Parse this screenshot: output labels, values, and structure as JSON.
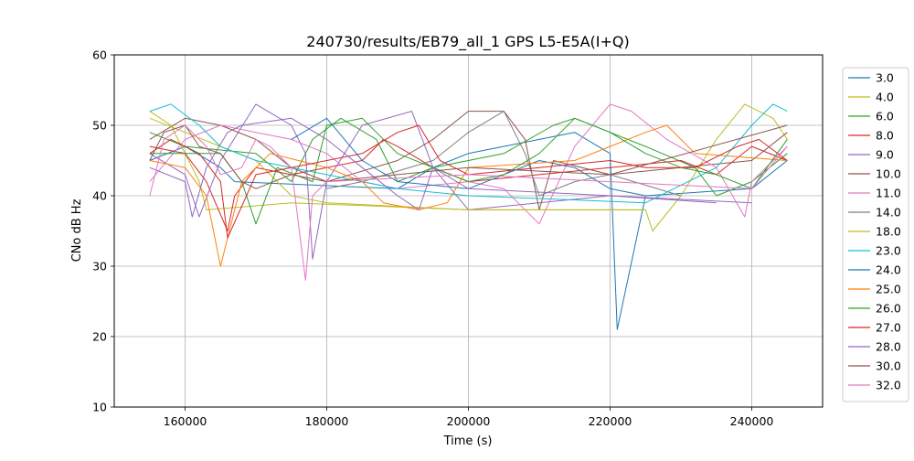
{
  "chart_data": {
    "type": "line",
    "title": "240730/results/EB79_all_1 GPS L5-E5A(I+Q)",
    "xlabel": "Time (s)",
    "ylabel": "CNo dB Hz",
    "xlim": [
      150000,
      250000
    ],
    "ylim": [
      10,
      60
    ],
    "x_ticks": [
      160000,
      180000,
      200000,
      220000,
      240000
    ],
    "y_ticks": [
      10,
      20,
      30,
      40,
      50,
      60
    ],
    "grid": true,
    "legend_position": "right",
    "series": [
      {
        "name": "3.0",
        "color": "#1f77b4",
        "x": [
          155000,
          160000,
          165000,
          167000,
          190000,
          195000,
          200000,
          210000,
          215000,
          220000,
          221000,
          225000,
          240000,
          245000
        ],
        "y": [
          45,
          47,
          44,
          42,
          41,
          44,
          46,
          48,
          49,
          46,
          21,
          40,
          41,
          45
        ]
      },
      {
        "name": "4.0",
        "color": "#bcbd22",
        "x": [
          155000,
          158000,
          162000,
          163000,
          175000,
          200000,
          225000,
          226000,
          230000,
          235000,
          239000,
          243000,
          245000
        ],
        "y": [
          52,
          50,
          42,
          38,
          39,
          38,
          38,
          35,
          40,
          48,
          53,
          51,
          48
        ]
      },
      {
        "name": "6.0",
        "color": "#2ca02c",
        "x": [
          155000,
          160000,
          170000,
          175000,
          178000,
          182000,
          187000,
          190000,
          195000,
          200000,
          205000,
          212000,
          215000,
          220000,
          225000,
          232000,
          235000,
          240000,
          245000
        ],
        "y": [
          49,
          47,
          46,
          42,
          48,
          51,
          48,
          42,
          44,
          45,
          46,
          50,
          51,
          49,
          47,
          44,
          40,
          42,
          46
        ]
      },
      {
        "name": "8.0",
        "color": "#d62728",
        "x": [
          155000,
          160000,
          163000,
          166000,
          167000,
          170000,
          175000,
          180000,
          185000,
          188000,
          190000,
          195000,
          200000,
          210000,
          220000,
          230000,
          235000,
          240000,
          245000
        ],
        "y": [
          47,
          46,
          42,
          35,
          40,
          44,
          43,
          44,
          45,
          48,
          47,
          44,
          42,
          43,
          44,
          45,
          43,
          47,
          45
        ]
      },
      {
        "name": "9.0",
        "color": "#9467bd",
        "x": [
          155000,
          160000,
          162000,
          165000,
          170000,
          175000,
          177000,
          178000,
          180000,
          185000,
          192000,
          195000,
          200000,
          220000,
          240000
        ],
        "y": [
          46,
          43,
          37,
          45,
          53,
          50,
          46,
          31,
          42,
          50,
          52,
          44,
          38,
          40,
          39
        ]
      },
      {
        "name": "10.0",
        "color": "#8c564b",
        "x": [
          155000,
          160000,
          165000,
          170000,
          175000,
          180000,
          190000,
          195000,
          200000,
          205000,
          208000,
          210000,
          212000,
          220000,
          240000,
          245000
        ],
        "y": [
          48,
          51,
          50,
          48,
          44,
          42,
          45,
          48,
          52,
          52,
          48,
          38,
          45,
          43,
          45,
          49
        ]
      },
      {
        "name": "11.0",
        "color": "#e377c2",
        "x": [
          155000,
          160000,
          165000,
          170000,
          175000,
          180000,
          185000,
          190000,
          200000,
          205000,
          210000,
          215000,
          220000,
          223000,
          228000,
          235000,
          239000,
          240000,
          245000
        ],
        "y": [
          42,
          48,
          50,
          49,
          48,
          46,
          42,
          41,
          42,
          41,
          36,
          47,
          53,
          52,
          48,
          44,
          37,
          42,
          47
        ]
      },
      {
        "name": "14.0",
        "color": "#7f7f7f",
        "x": [
          180000,
          185000,
          195000,
          200000,
          205000,
          208000,
          210000,
          215000,
          220000,
          230000
        ],
        "y": [
          41,
          42,
          45,
          49,
          52,
          46,
          40,
          42,
          43,
          40
        ]
      },
      {
        "name": "18.0",
        "color": "#bcbd22",
        "x": [
          155000,
          160000,
          170000,
          175000,
          180000,
          200000,
          225000
        ],
        "y": [
          51,
          49,
          45,
          40,
          39,
          38,
          38
        ]
      },
      {
        "name": "23.0",
        "color": "#17becf",
        "x": [
          155000,
          158000,
          162000,
          165000,
          170000,
          175000,
          180000,
          185000,
          190000,
          200000,
          225000,
          235000,
          240000,
          243000,
          245000
        ],
        "y": [
          52,
          53,
          50,
          47,
          45,
          44,
          43,
          42,
          41,
          40,
          39,
          44,
          50,
          53,
          52
        ]
      },
      {
        "name": "24.0",
        "color": "#1f77b4",
        "x": [
          175000,
          180000,
          185000,
          190000,
          200000,
          210000,
          215000,
          220000,
          225000
        ],
        "y": [
          48,
          51,
          45,
          42,
          41,
          45,
          44,
          41,
          40
        ]
      },
      {
        "name": "25.0",
        "color": "#ff7f0e",
        "x": [
          155000,
          160000,
          163000,
          165000,
          168000,
          172000,
          176000,
          180000,
          185000,
          188000,
          193000,
          197000,
          200000,
          215000,
          220000,
          225000,
          228000,
          232000,
          245000
        ],
        "y": [
          45,
          44,
          40,
          30,
          42,
          46,
          45,
          44,
          42,
          39,
          38,
          39,
          44,
          45,
          47,
          49,
          50,
          46,
          45
        ]
      },
      {
        "name": "26.0",
        "color": "#2ca02c",
        "x": [
          155000,
          165000,
          168000,
          170000,
          173000,
          178000,
          180000,
          185000,
          190000,
          200000,
          205000,
          210000,
          215000,
          220000,
          225000,
          230000,
          235000,
          240000,
          245000
        ],
        "y": [
          46,
          46,
          42,
          36,
          44,
          42,
          50,
          51,
          46,
          42,
          43,
          46,
          51,
          49,
          46,
          44,
          43,
          41,
          48
        ]
      },
      {
        "name": "27.0",
        "color": "#d62728",
        "x": [
          155000,
          158000,
          162000,
          165000,
          166000,
          170000,
          175000,
          185000,
          190000,
          193000,
          196000,
          200000,
          210000,
          220000,
          225000,
          232000,
          238000,
          241000,
          245000
        ],
        "y": [
          46,
          48,
          46,
          42,
          34,
          43,
          44,
          46,
          49,
          50,
          45,
          43,
          44,
          45,
          44,
          44,
          47,
          48,
          45
        ]
      },
      {
        "name": "28.0",
        "color": "#9467bd",
        "x": [
          155000,
          160000,
          161000,
          163000,
          166000,
          168000,
          175000,
          180000,
          185000,
          190000,
          193000,
          195000,
          200000,
          220000,
          235000
        ],
        "y": [
          44,
          42,
          37,
          44,
          49,
          50,
          51,
          48,
          44,
          40,
          38,
          44,
          41,
          40,
          39
        ]
      },
      {
        "name": "30.0",
        "color": "#8c564b",
        "x": [
          155000,
          157000,
          160000,
          162000,
          165000,
          168000,
          170000,
          175000,
          180000,
          200000,
          220000,
          245000
        ],
        "y": [
          45,
          49,
          50,
          47,
          46,
          42,
          41,
          43,
          42,
          44,
          43,
          50
        ]
      },
      {
        "name": "32.0",
        "color": "#e377c2",
        "x": [
          155000,
          157000,
          160000,
          163000,
          165000,
          168000,
          170000,
          172000,
          175000,
          177000,
          178000,
          180000,
          200000,
          240000,
          245000
        ],
        "y": [
          40,
          48,
          50,
          47,
          43,
          44,
          48,
          47,
          44,
          28,
          40,
          42,
          43,
          41,
          47
        ]
      }
    ]
  }
}
